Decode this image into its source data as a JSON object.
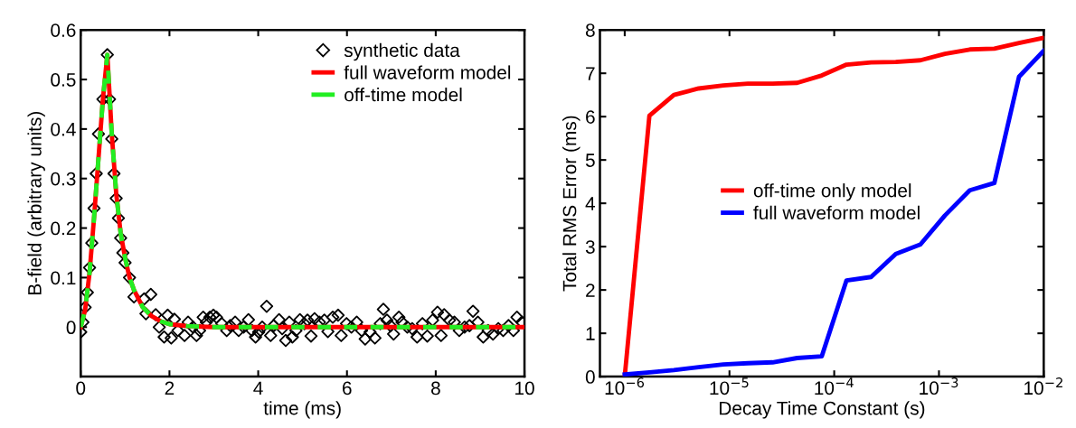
{
  "chart_data": [
    {
      "type": "line",
      "xlabel": "time (ms)",
      "ylabel": "B-field (arbitrary units)",
      "xlim": [
        0,
        10
      ],
      "ylim": [
        -0.1,
        0.6
      ],
      "xticks": [
        0,
        2,
        4,
        6,
        8,
        {
          "value": 10,
          "label": "10"
        }
      ],
      "yticks": [
        0,
        0.1,
        0.2,
        0.3,
        0.4,
        0.5,
        0.6
      ],
      "grid": false,
      "legend": "top right",
      "series": [
        {
          "name": "synthetic data",
          "type": "scatter",
          "marker": "diamond",
          "color": "#000000",
          "x": [
            0,
            0.05,
            0.1,
            0.15,
            0.2,
            0.25,
            0.3,
            0.35,
            0.4,
            0.5,
            0.6,
            0.65,
            0.7,
            0.75,
            0.8,
            0.85,
            0.9,
            0.95,
            1.0,
            1.1,
            1.2,
            1.43,
            1.58,
            1.47,
            1.69,
            1.77,
            1.88,
            1.96,
            2.04,
            2.11,
            2.19,
            2.34,
            2.42,
            2.53,
            2.61,
            2.68,
            2.76,
            2.83,
            2.91,
            2.99,
            3.06,
            3.18,
            3.29,
            3.37,
            3.48,
            3.56,
            3.67,
            3.78,
            3.86,
            3.94,
            4.01,
            4.09,
            4.19,
            4.28,
            4.35,
            4.47,
            4.54,
            4.62,
            4.7,
            4.77,
            4.85,
            4.94,
            5.04,
            5.11,
            5.19,
            5.27,
            5.38,
            5.49,
            5.57,
            5.68,
            5.8,
            5.87,
            5.99,
            6.1,
            6.22,
            6.33,
            6.41,
            6.52,
            6.63,
            6.75,
            6.82,
            6.9,
            6.98,
            7.05,
            7.17,
            7.24,
            7.36,
            7.47,
            7.58,
            7.7,
            7.81,
            7.93,
            8.04,
            8.12,
            8.19,
            8.31,
            8.42,
            8.53,
            8.65,
            8.76,
            8.84,
            8.95,
            9.07,
            9.18,
            9.29,
            9.41,
            9.52,
            9.64,
            9.75,
            9.83,
            9.94
          ],
          "values": [
            -0.01,
            0.01,
            0.04,
            0.07,
            0.12,
            0.17,
            0.24,
            0.31,
            0.39,
            0.46,
            0.55,
            0.46,
            0.38,
            0.31,
            0.26,
            0.22,
            0.18,
            0.15,
            0.13,
            0.1,
            0.061,
            0.057,
            0.066,
            0.027,
            0.025,
            0.0,
            -0.02,
            0.024,
            -0.022,
            0.016,
            -0.007,
            -0.017,
            0.01,
            0.0,
            -0.017,
            -0.007,
            0.02,
            0.01,
            0.02,
            0.024,
            0.02,
            0.007,
            -0.007,
            0.003,
            0.01,
            -0.007,
            0.0,
            0.015,
            -0.007,
            -0.02,
            -0.01,
            0.0,
            0.042,
            -0.017,
            0.003,
            0.015,
            -0.003,
            -0.027,
            0.01,
            -0.02,
            -0.007,
            0.015,
            0.007,
            0.014,
            -0.018,
            0.017,
            0.01,
            0.014,
            -0.009,
            0.02,
            0.024,
            -0.017,
            0.007,
            0.0,
            0.01,
            -0.007,
            -0.024,
            -0.01,
            -0.022,
            0.007,
            0.036,
            0.014,
            0.003,
            -0.014,
            0.02,
            0.01,
            0.0,
            -0.003,
            -0.02,
            0.007,
            -0.018,
            0.014,
            0.03,
            -0.017,
            0.025,
            0.014,
            0.01,
            -0.007,
            0.0,
            0.003,
            0.032,
            0.01,
            -0.02,
            -0.007,
            -0.014,
            -0.003,
            -0.007,
            0.003,
            -0.007,
            0.02,
            0.01
          ]
        },
        {
          "name": "full waveform model",
          "type": "line",
          "line_style": "solid",
          "color": "#ff0000",
          "x": [
            0,
            0.1,
            0.2,
            0.3,
            0.4,
            0.5,
            0.6,
            0.7,
            0.8,
            0.9,
            1.0,
            1.1,
            1.2,
            1.4,
            1.6,
            1.8,
            2.0,
            2.4,
            3,
            10
          ],
          "values": [
            0,
            0.035,
            0.11,
            0.22,
            0.34,
            0.46,
            0.55,
            0.39,
            0.27,
            0.19,
            0.14,
            0.1,
            0.075,
            0.04,
            0.022,
            0.012,
            0.006,
            0.002,
            0,
            0
          ]
        },
        {
          "name": "off-time model",
          "type": "line",
          "line_style": "dashed",
          "color": "#22ee22",
          "x": [
            0,
            0.1,
            0.2,
            0.3,
            0.4,
            0.5,
            0.6,
            0.7,
            0.8,
            0.9,
            1.0,
            1.1,
            1.2,
            1.4,
            1.6,
            1.8,
            2.0,
            2.4,
            3,
            10
          ],
          "values": [
            0,
            0.035,
            0.11,
            0.22,
            0.34,
            0.46,
            0.55,
            0.39,
            0.27,
            0.19,
            0.14,
            0.1,
            0.075,
            0.04,
            0.022,
            0.012,
            0.006,
            0.002,
            0,
            0
          ]
        }
      ]
    },
    {
      "type": "line",
      "xlabel": "Decay Time Constant (s)",
      "ylabel": "Total RMS Error (ms)",
      "log": "x",
      "xlim": [
        5.8e-07,
        0.01
      ],
      "ylim": [
        0,
        8
      ],
      "xticks": [
        {
          "value": 1e-06,
          "label": "10$^{−6}$"
        },
        {
          "value": 1e-05,
          "label": "10$^{−5}$"
        },
        {
          "value": 0.0001,
          "label": "10$^{−4}$"
        },
        {
          "value": 0.001,
          "label": "10$^{−3}$"
        },
        {
          "value": 0.01,
          "label": "10$^{−2}$"
        }
      ],
      "yticks": [
        0,
        1,
        2,
        3,
        4,
        5,
        6,
        7,
        8
      ],
      "grid": false,
      "legend": "center",
      "x": [
        1e-06,
        1.72e-06,
        2.95e-06,
        5.08e-06,
        8.73e-06,
        1.5e-05,
        2.58e-05,
        4.43e-05,
        7.61e-05,
        0.000131,
        0.000225,
        0.000387,
        0.000665,
        0.00114,
        0.00197,
        0.00338,
        0.00581,
        0.01
      ],
      "series": [
        {
          "name": "off-time only model",
          "color": "#ff0000",
          "values": [
            0,
            6.02,
            6.5,
            6.65,
            6.72,
            6.76,
            6.76,
            6.78,
            6.95,
            7.2,
            7.25,
            7.26,
            7.3,
            7.45,
            7.55,
            7.57,
            7.7,
            7.82
          ]
        },
        {
          "name": "full waveform model",
          "color": "#0000ff",
          "values": [
            0.05,
            0.1,
            0.15,
            0.22,
            0.28,
            0.31,
            0.33,
            0.43,
            0.47,
            2.22,
            2.3,
            2.83,
            3.05,
            3.72,
            4.3,
            4.47,
            6.92,
            7.52
          ]
        }
      ]
    }
  ]
}
